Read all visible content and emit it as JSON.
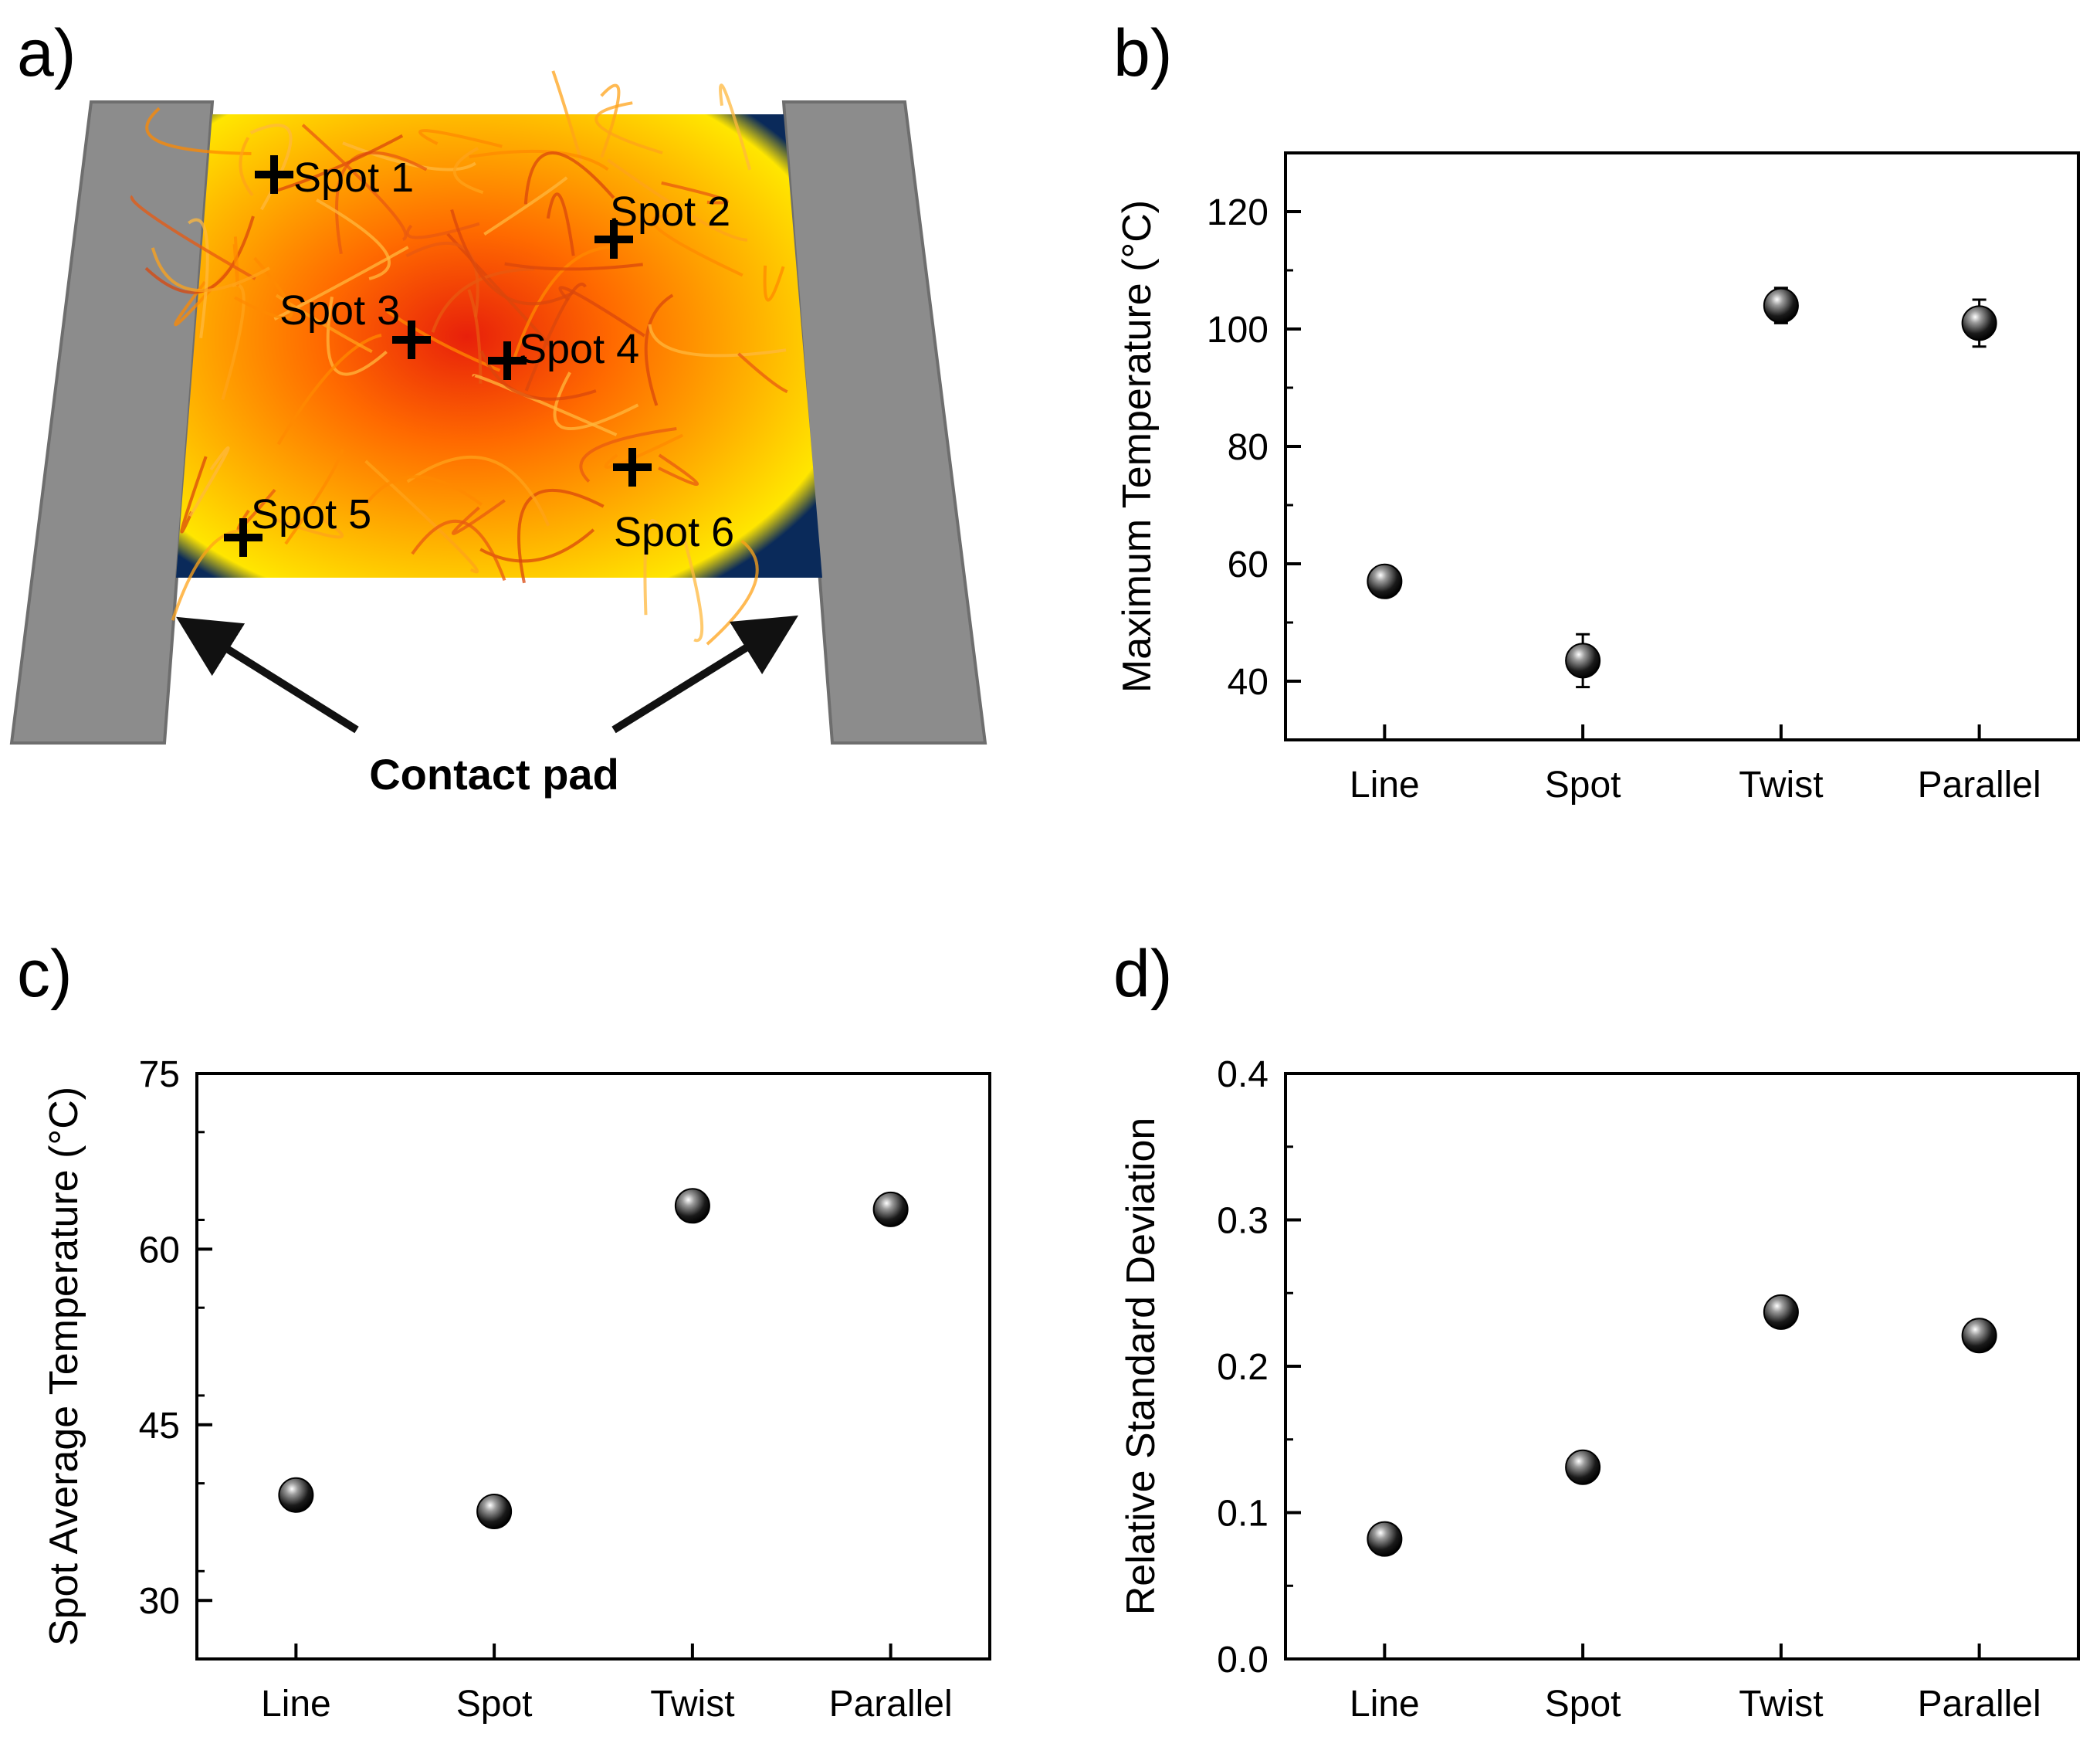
{
  "panels": {
    "a": {
      "label": "a)",
      "spots": [
        {
          "id": "spot1",
          "label": "Spot 1"
        },
        {
          "id": "spot2",
          "label": "Spot 2"
        },
        {
          "id": "spot3",
          "label": "Spot 3"
        },
        {
          "id": "spot4",
          "label": "Spot  4"
        },
        {
          "id": "spot5",
          "label": "Spot  5"
        },
        {
          "id": "spot6",
          "label": "Spot  6"
        }
      ],
      "contact_label": "Contact pad",
      "colors": {
        "pad": "#8c8c8c",
        "hot": "#e8200a",
        "warm": "#ffb400",
        "cool": "#ffe600",
        "edge": "#0a2a5a"
      }
    },
    "b": {
      "label": "b)"
    },
    "c": {
      "label": "c)"
    },
    "d": {
      "label": "d)"
    }
  },
  "chart_data": [
    {
      "id": "b",
      "type": "scatter",
      "title": "",
      "xlabel": "",
      "ylabel": "Maximum Temperature (°C)",
      "categories": [
        "Line",
        "Spot",
        "Twist",
        "Parallel"
      ],
      "values": [
        57,
        43.5,
        104,
        101
      ],
      "errors": [
        1,
        4.5,
        3,
        4
      ],
      "ylim": [
        30,
        130
      ],
      "yticks": [
        40,
        60,
        80,
        100,
        120
      ],
      "ytick_labels": [
        "40",
        "60",
        "80",
        "100",
        "120"
      ],
      "minor_step": 10
    },
    {
      "id": "c",
      "type": "scatter",
      "title": "",
      "xlabel": "",
      "ylabel": "Spot Average Temperature (°C)",
      "categories": [
        "Line",
        "Spot",
        "Twist",
        "Parallel"
      ],
      "values": [
        39,
        37.6,
        63.7,
        63.4
      ],
      "errors": [
        0,
        0,
        0,
        0
      ],
      "ylim": [
        25,
        75
      ],
      "yticks": [
        30,
        45,
        60,
        75
      ],
      "ytick_labels": [
        "30",
        "45",
        "60",
        "75"
      ],
      "minor_step": 7.5
    },
    {
      "id": "d",
      "type": "scatter",
      "title": "",
      "xlabel": "",
      "ylabel": "Relative Standard Deviation",
      "categories": [
        "Line",
        "Spot",
        "Twist",
        "Parallel"
      ],
      "values": [
        0.082,
        0.131,
        0.237,
        0.221
      ],
      "errors": [
        0,
        0,
        0,
        0
      ],
      "ylim": [
        0.0,
        0.4
      ],
      "yticks": [
        0.0,
        0.1,
        0.2,
        0.3,
        0.4
      ],
      "ytick_labels": [
        "0.0",
        "0.1",
        "0.2",
        "0.3",
        "0.4"
      ],
      "minor_step": 0.05
    }
  ]
}
